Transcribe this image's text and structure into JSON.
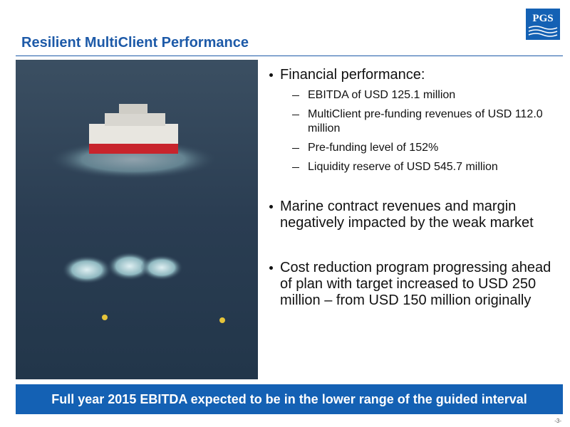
{
  "header": {
    "title": "Resilient MultiClient Performance",
    "logo": "PGS"
  },
  "bullets": [
    {
      "text": "Financial performance:",
      "sub": [
        "EBITDA of USD 125.1 million",
        "MultiClient pre-funding revenues of USD 112.0 million",
        "Pre-funding level of 152%",
        "Liquidity reserve of USD 545.7 million"
      ]
    },
    {
      "text": "Marine contract revenues and margin negatively impacted by the weak market"
    },
    {
      "text": "Cost reduction program progressing ahead of plan with target increased to USD 250 million – from USD 150 million originally"
    }
  ],
  "banner": "Full year 2015 EBITDA expected to be in the lower range of the guided interval",
  "page_number": "-3-"
}
